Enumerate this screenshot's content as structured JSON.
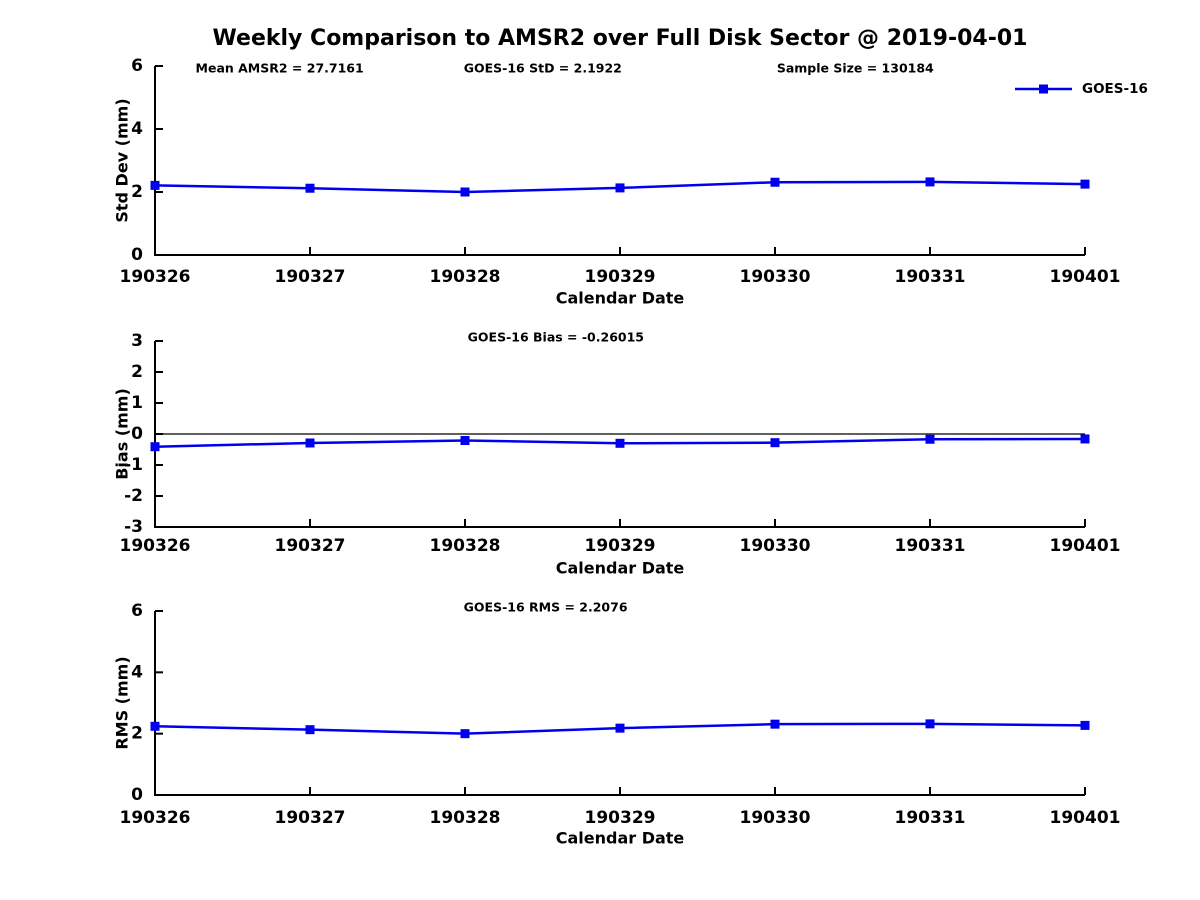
{
  "title": "Weekly Comparison to AMSR2 over Full Disk Sector @ 2019-04-01",
  "colors": {
    "line": "#0000EE",
    "axis": "#000000",
    "background": "#FFFFFF"
  },
  "legend": {
    "label": "GOES-16",
    "position": "top-right-above-plot"
  },
  "chart_data": [
    {
      "type": "line",
      "id": "std-dev",
      "series_name": "GOES-16",
      "categories": [
        "190326",
        "190327",
        "190328",
        "190329",
        "190330",
        "190331",
        "190401"
      ],
      "values": [
        2.21,
        2.12,
        2.0,
        2.13,
        2.31,
        2.32,
        2.25
      ],
      "xlabel": "Calendar Date",
      "ylabel": "Std Dev (mm)",
      "ylim": [
        0,
        6
      ],
      "yticks": [
        0,
        2,
        4,
        6
      ],
      "grid": false,
      "zero_line": false,
      "marker": "square",
      "annotations": [
        {
          "text": "Mean AMSR2 = 27.7161",
          "fx": 0.134
        },
        {
          "text": "GOES-16 StD = 2.1922",
          "fx": 0.417
        },
        {
          "text": "Sample Size = 130184",
          "fx": 0.753
        }
      ],
      "show_legend": true
    },
    {
      "type": "line",
      "id": "bias",
      "series_name": "GOES-16",
      "categories": [
        "190326",
        "190327",
        "190328",
        "190329",
        "190330",
        "190331",
        "190401"
      ],
      "values": [
        -0.41,
        -0.29,
        -0.21,
        -0.3,
        -0.28,
        -0.17,
        -0.16
      ],
      "xlabel": "Calendar Date",
      "ylabel": "Bias (mm)",
      "ylim": [
        -3,
        3
      ],
      "yticks": [
        -3,
        -2,
        -1,
        0,
        1,
        2,
        3
      ],
      "grid": false,
      "zero_line": true,
      "marker": "square",
      "annotations": [
        {
          "text": "GOES-16 Bias  = -0.26015",
          "fx": 0.431
        }
      ],
      "show_legend": false
    },
    {
      "type": "line",
      "id": "rms",
      "series_name": "GOES-16",
      "categories": [
        "190326",
        "190327",
        "190328",
        "190329",
        "190330",
        "190331",
        "190401"
      ],
      "values": [
        2.24,
        2.13,
        2.0,
        2.18,
        2.31,
        2.32,
        2.27
      ],
      "xlabel": "Calendar Date",
      "ylabel": "RMS (mm)",
      "ylim": [
        0,
        6
      ],
      "yticks": [
        0,
        2,
        4,
        6
      ],
      "grid": false,
      "zero_line": false,
      "marker": "square",
      "annotations": [
        {
          "text": "GOES-16 RMS = 2.2076",
          "fx": 0.42
        }
      ],
      "show_legend": false
    }
  ]
}
